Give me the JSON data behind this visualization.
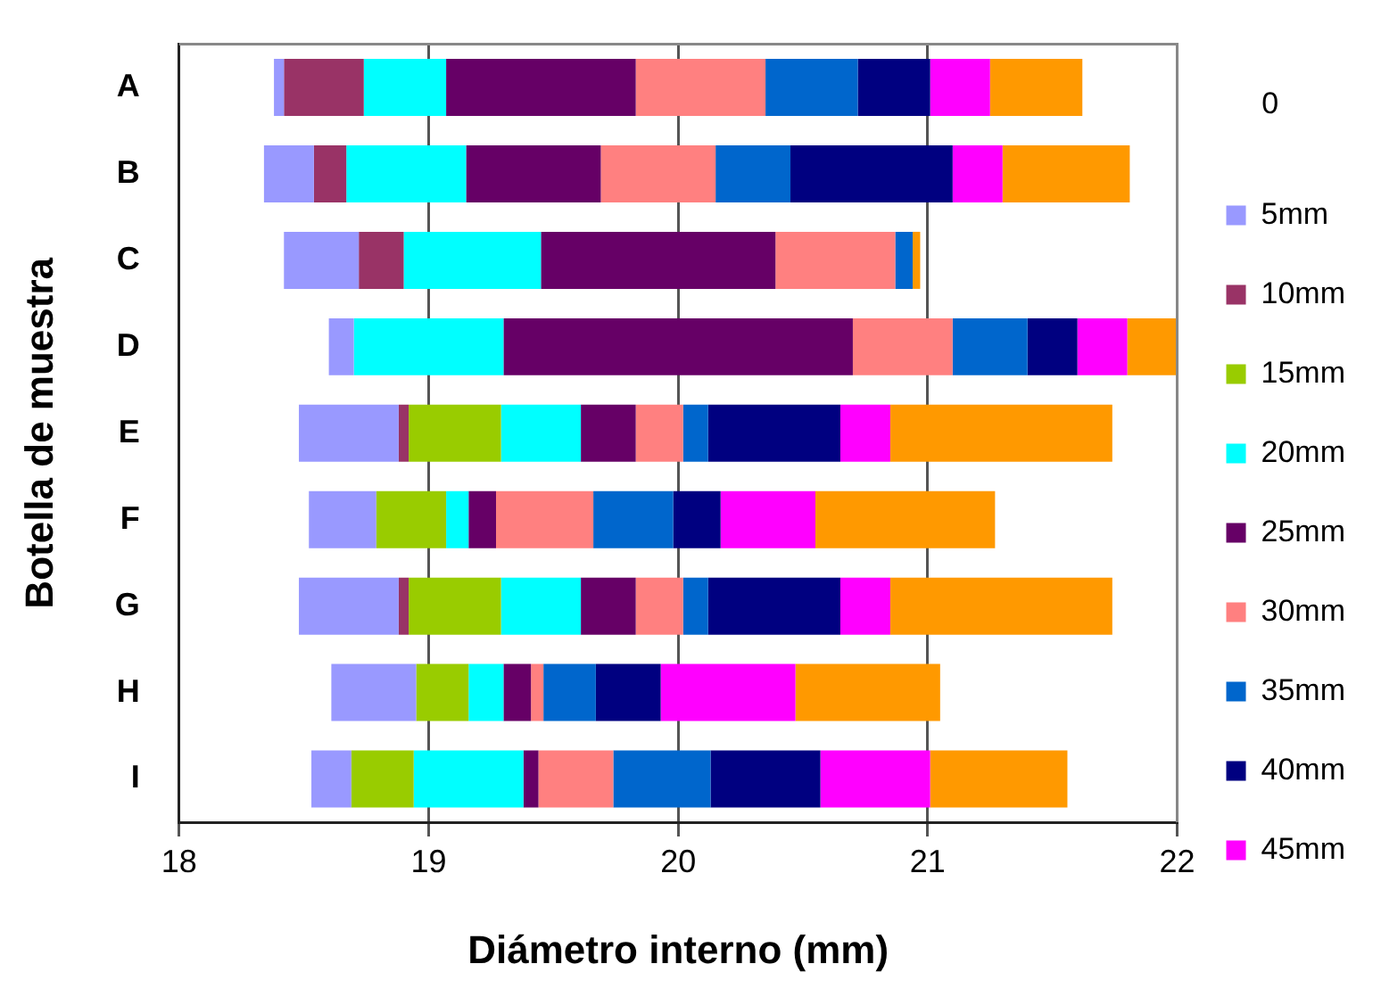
{
  "chart_data": {
    "type": "bar",
    "orientation": "horizontal",
    "xlabel": "Diámetro interno (mm)",
    "ylabel": "Botella de muestra",
    "legend_title": "0",
    "categories": [
      "A",
      "B",
      "C",
      "D",
      "E",
      "F",
      "G",
      "H",
      "I"
    ],
    "series": [
      {
        "name": "5mm",
        "color": "#9999ff",
        "base": [
          18.38,
          18.34,
          18.42,
          18.6,
          18.48,
          18.52,
          18.48,
          18.61,
          18.53
        ],
        "values": [
          0.04,
          0.2,
          0.3,
          0.1,
          0.4,
          0.27,
          0.4,
          0.34,
          0.16
        ]
      },
      {
        "name": "10mm",
        "color": "#993366",
        "base": [
          18.42,
          18.54,
          18.72,
          null,
          18.88,
          null,
          18.88,
          null,
          null
        ],
        "values": [
          0.32,
          0.13,
          0.18,
          null,
          0.04,
          null,
          0.04,
          null,
          null
        ]
      },
      {
        "name": "15mm",
        "color": "#99cc00",
        "base": [
          null,
          null,
          null,
          null,
          18.92,
          18.79,
          18.92,
          18.95,
          18.69
        ],
        "values": [
          null,
          null,
          null,
          null,
          0.37,
          0.28,
          0.37,
          0.21,
          0.25
        ]
      },
      {
        "name": "20mm",
        "color": "#00ffff",
        "base": [
          18.74,
          18.67,
          18.9,
          18.7,
          19.29,
          19.07,
          19.29,
          19.16,
          18.94
        ],
        "values": [
          0.33,
          0.48,
          0.55,
          0.6,
          0.32,
          0.09,
          0.32,
          0.14,
          0.44
        ]
      },
      {
        "name": "25mm",
        "color": "#660066",
        "base": [
          19.07,
          19.15,
          19.45,
          19.3,
          19.61,
          19.16,
          19.61,
          19.3,
          19.38
        ],
        "values": [
          0.76,
          0.54,
          0.94,
          1.4,
          0.22,
          0.11,
          0.22,
          0.11,
          0.06
        ]
      },
      {
        "name": "30mm",
        "color": "#ff8080",
        "base": [
          19.83,
          19.69,
          20.39,
          20.7,
          19.83,
          19.27,
          19.83,
          19.41,
          19.44
        ],
        "values": [
          0.52,
          0.46,
          0.48,
          0.4,
          0.19,
          0.39,
          0.19,
          0.05,
          0.3
        ]
      },
      {
        "name": "35mm",
        "color": "#0066cc",
        "base": [
          20.35,
          20.15,
          20.87,
          21.1,
          20.02,
          19.66,
          20.02,
          19.46,
          19.74
        ],
        "values": [
          0.37,
          0.3,
          0.07,
          0.3,
          0.1,
          0.32,
          0.1,
          0.21,
          0.39
        ]
      },
      {
        "name": "40mm",
        "color": "#000080",
        "base": [
          20.72,
          20.45,
          null,
          21.4,
          20.12,
          19.98,
          20.12,
          19.67,
          20.13
        ],
        "values": [
          0.29,
          0.65,
          null,
          0.2,
          0.53,
          0.19,
          0.53,
          0.26,
          0.44
        ]
      },
      {
        "name": "45mm",
        "color": "#ff00ff",
        "base": [
          21.01,
          21.1,
          null,
          21.6,
          20.65,
          20.17,
          20.65,
          19.93,
          20.57
        ],
        "values": [
          0.24,
          0.2,
          null,
          0.2,
          0.2,
          0.38,
          0.2,
          0.54,
          0.44
        ]
      },
      {
        "color": "#ff9900",
        "base": [
          21.25,
          21.3,
          20.94,
          21.8,
          20.85,
          20.55,
          20.85,
          20.47,
          21.01
        ],
        "values": [
          0.37,
          0.51,
          0.03,
          0.2,
          0.89,
          0.72,
          0.89,
          0.58,
          0.55
        ]
      }
    ],
    "xlim": [
      18,
      22
    ],
    "xticks": [
      18,
      19,
      20,
      21,
      22
    ],
    "grid": "x",
    "legend": "right"
  }
}
